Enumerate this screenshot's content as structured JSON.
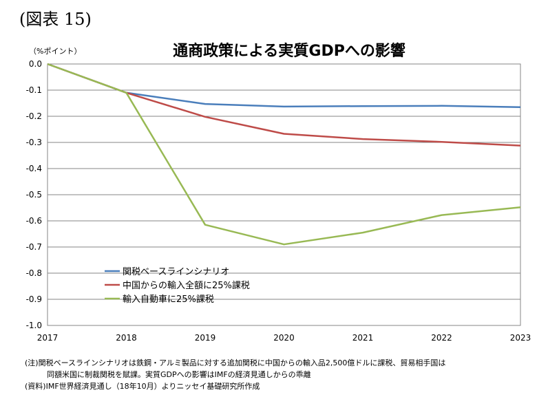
{
  "figure_label": "(図表 15)",
  "chart_data": {
    "type": "line",
    "title": "通商政策による実質GDPへの影響",
    "unit_label": "（%ポイント）",
    "x": [
      "2017",
      "2018",
      "2019",
      "2020",
      "2021",
      "2022",
      "2023"
    ],
    "ylim": [
      -1.0,
      0.0
    ],
    "yticks": [
      "0.0",
      "-0.1",
      "-0.2",
      "-0.3",
      "-0.4",
      "-0.5",
      "-0.6",
      "-0.7",
      "-0.8",
      "-0.9",
      "-1.0"
    ],
    "grid": true,
    "legend_position": "lower-left",
    "series": [
      {
        "name": "関税ベースラインシナリオ",
        "color": "#4a7ebb",
        "values": [
          0.0,
          -0.11,
          -0.153,
          -0.163,
          -0.161,
          -0.16,
          -0.165
        ]
      },
      {
        "name": "中国からの輸入全額に25%課税",
        "color": "#be4b48",
        "values": [
          0.0,
          -0.11,
          -0.202,
          -0.267,
          -0.287,
          -0.298,
          -0.312
        ]
      },
      {
        "name": "輸入自動車に25%課税",
        "color": "#98b954",
        "values": [
          0.0,
          -0.11,
          -0.615,
          -0.69,
          -0.645,
          -0.578,
          -0.548
        ]
      }
    ]
  },
  "notes": [
    "(注)関税ベースラインシナリオは鉄鋼・アルミ製品に対する追加関税に中国からの輸入品2,500億ドルに課税、貿易相手国は",
    "同額米国に制裁関税を賦課。実質GDPへの影響はIMFの経済見通しからの乖離",
    "(資料)IMF世界経済見通し（18年10月）よりニッセイ基礎研究所作成"
  ]
}
